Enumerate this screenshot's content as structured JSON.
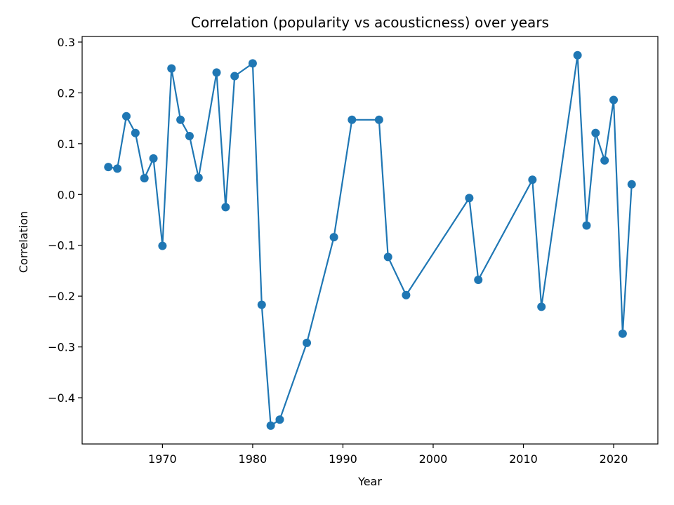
{
  "chart_data": {
    "type": "line",
    "title": "Correlation (popularity vs acousticness) over years",
    "xlabel": "Year",
    "ylabel": "Correlation",
    "xlim": [
      1961.1,
      2024.9
    ],
    "ylim": [
      -0.491,
      0.311
    ],
    "xticks": [
      1970,
      1980,
      1990,
      2000,
      2010,
      2020
    ],
    "yticks": [
      -0.4,
      -0.3,
      -0.2,
      -0.1,
      0.0,
      0.1,
      0.2,
      0.3
    ],
    "ytick_labels": [
      "−0.4",
      "−0.3",
      "−0.2",
      "−0.1",
      "0.0",
      "0.1",
      "0.2",
      "0.3"
    ],
    "grid": false,
    "line_color": "#1f77b4",
    "marker": "circle",
    "series": [
      {
        "x": [
          1964,
          1965,
          1966,
          1967,
          1968,
          1969,
          1970,
          1971,
          1972,
          1973,
          1974,
          1976,
          1977,
          1978,
          1980,
          1981,
          1982,
          1983,
          1986,
          1989,
          1991,
          1994,
          1995,
          1997,
          2004,
          2005,
          2011,
          2012,
          2016,
          2017,
          2018,
          2019,
          2020,
          2021,
          2022
        ],
        "y": [
          0.054,
          0.051,
          0.154,
          0.121,
          0.032,
          0.071,
          -0.101,
          0.248,
          0.147,
          0.115,
          0.033,
          0.24,
          -0.025,
          0.233,
          0.258,
          -0.217,
          -0.455,
          -0.443,
          -0.292,
          -0.084,
          0.147,
          0.147,
          -0.123,
          -0.198,
          -0.007,
          -0.168,
          0.029,
          -0.221,
          0.274,
          -0.061,
          0.121,
          0.067,
          0.186,
          -0.274,
          0.02
        ]
      }
    ]
  }
}
